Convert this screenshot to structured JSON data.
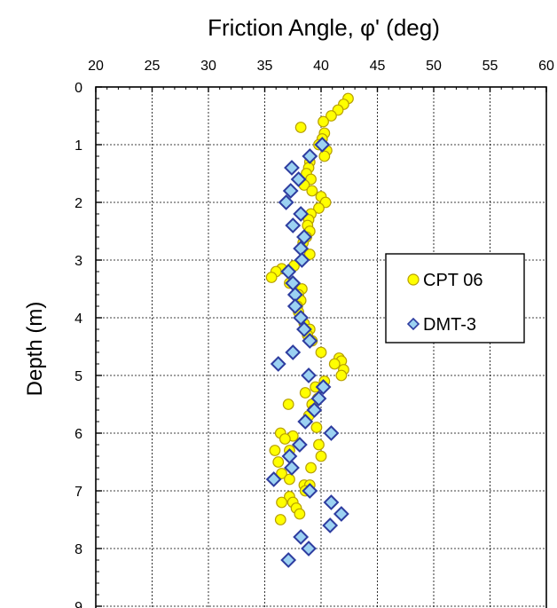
{
  "chart_data": {
    "type": "scatter",
    "title": "",
    "xlabel": "Friction Angle, φ' (deg)",
    "ylabel": "Depth (m)",
    "x_axis_position": "top",
    "y_axis_inverted": true,
    "xlim": [
      20,
      60
    ],
    "ylim": [
      0,
      9
    ],
    "xticks": [
      "20",
      "25",
      "30",
      "35",
      "40",
      "45",
      "50",
      "55",
      "60"
    ],
    "yticks": [
      "0",
      "1",
      "2",
      "3",
      "4",
      "5",
      "6",
      "7",
      "8",
      "9"
    ],
    "grid": true,
    "legend_position": "right",
    "series": [
      {
        "name": "CPT 06",
        "marker": "circle",
        "fill": "#FFFF00",
        "stroke": "#B8A000",
        "points": [
          [
            42.4,
            0.2
          ],
          [
            42.0,
            0.3
          ],
          [
            41.5,
            0.4
          ],
          [
            40.9,
            0.5
          ],
          [
            40.2,
            0.6
          ],
          [
            38.2,
            0.7
          ],
          [
            40.3,
            0.8
          ],
          [
            40.1,
            0.9
          ],
          [
            39.8,
            1.0
          ],
          [
            40.5,
            1.1
          ],
          [
            40.3,
            1.2
          ],
          [
            39.0,
            1.3
          ],
          [
            38.9,
            1.4
          ],
          [
            38.7,
            1.5
          ],
          [
            39.1,
            1.6
          ],
          [
            38.5,
            1.7
          ],
          [
            39.2,
            1.8
          ],
          [
            40.0,
            1.9
          ],
          [
            40.4,
            2.0
          ],
          [
            39.8,
            2.1
          ],
          [
            39.1,
            2.2
          ],
          [
            38.9,
            2.3
          ],
          [
            38.8,
            2.4
          ],
          [
            39.0,
            2.5
          ],
          [
            38.7,
            2.6
          ],
          [
            38.4,
            2.7
          ],
          [
            39.0,
            2.9
          ],
          [
            37.6,
            3.1
          ],
          [
            36.5,
            3.15
          ],
          [
            36.0,
            3.2
          ],
          [
            35.6,
            3.3
          ],
          [
            37.2,
            3.4
          ],
          [
            38.3,
            3.5
          ],
          [
            38.0,
            3.6
          ],
          [
            38.2,
            3.7
          ],
          [
            37.9,
            3.8
          ],
          [
            38.0,
            3.9
          ],
          [
            38.5,
            4.1
          ],
          [
            39.0,
            4.2
          ],
          [
            38.8,
            4.3
          ],
          [
            39.2,
            4.4
          ],
          [
            40.0,
            4.6
          ],
          [
            41.6,
            4.7
          ],
          [
            41.8,
            4.75
          ],
          [
            41.2,
            4.8
          ],
          [
            42.0,
            4.9
          ],
          [
            41.8,
            5.0
          ],
          [
            40.3,
            5.1
          ],
          [
            39.5,
            5.2
          ],
          [
            38.6,
            5.3
          ],
          [
            39.7,
            5.4
          ],
          [
            39.2,
            5.5
          ],
          [
            37.1,
            5.5
          ],
          [
            39.3,
            5.6
          ],
          [
            38.9,
            5.7
          ],
          [
            38.6,
            5.8
          ],
          [
            39.6,
            5.9
          ],
          [
            36.4,
            6.0
          ],
          [
            37.5,
            6.05
          ],
          [
            36.8,
            6.1
          ],
          [
            39.8,
            6.2
          ],
          [
            40.0,
            6.4
          ],
          [
            35.9,
            6.3
          ],
          [
            37.2,
            6.3
          ],
          [
            36.2,
            6.5
          ],
          [
            39.1,
            6.6
          ],
          [
            36.5,
            6.7
          ],
          [
            37.2,
            6.8
          ],
          [
            38.5,
            6.9
          ],
          [
            39.0,
            6.9
          ],
          [
            38.6,
            7.0
          ],
          [
            37.2,
            7.1
          ],
          [
            37.5,
            7.2
          ],
          [
            36.5,
            7.2
          ],
          [
            37.8,
            7.3
          ],
          [
            38.1,
            7.4
          ],
          [
            36.4,
            7.5
          ]
        ]
      },
      {
        "name": "DMT-3",
        "marker": "diamond",
        "fill": "#9CD2F2",
        "stroke": "#2E3DA0",
        "points": [
          [
            40.1,
            1.0
          ],
          [
            39.0,
            1.2
          ],
          [
            37.4,
            1.4
          ],
          [
            38.0,
            1.6
          ],
          [
            37.3,
            1.8
          ],
          [
            36.9,
            2.0
          ],
          [
            38.2,
            2.2
          ],
          [
            37.5,
            2.4
          ],
          [
            38.5,
            2.6
          ],
          [
            38.2,
            2.8
          ],
          [
            38.3,
            3.0
          ],
          [
            37.1,
            3.2
          ],
          [
            37.5,
            3.4
          ],
          [
            37.7,
            3.6
          ],
          [
            37.7,
            3.8
          ],
          [
            38.2,
            4.0
          ],
          [
            38.5,
            4.2
          ],
          [
            39.0,
            4.4
          ],
          [
            37.5,
            4.6
          ],
          [
            36.2,
            4.8
          ],
          [
            38.9,
            5.0
          ],
          [
            40.2,
            5.2
          ],
          [
            39.8,
            5.4
          ],
          [
            39.4,
            5.6
          ],
          [
            38.6,
            5.8
          ],
          [
            40.9,
            6.0
          ],
          [
            38.1,
            6.2
          ],
          [
            37.2,
            6.4
          ],
          [
            37.4,
            6.6
          ],
          [
            35.8,
            6.8
          ],
          [
            39.0,
            7.0
          ],
          [
            40.9,
            7.2
          ],
          [
            41.8,
            7.4
          ],
          [
            40.8,
            7.6
          ],
          [
            38.2,
            7.8
          ],
          [
            38.9,
            8.0
          ],
          [
            37.1,
            8.2
          ]
        ]
      }
    ]
  },
  "colors": {
    "plot_border": "#000000",
    "grid": "#000000",
    "background": "#ffffff"
  }
}
